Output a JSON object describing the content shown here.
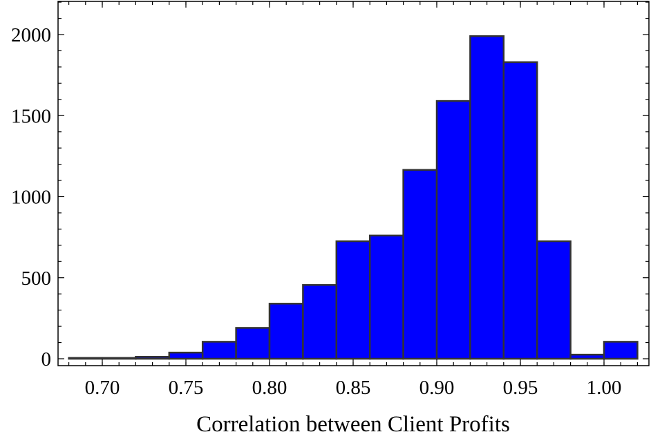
{
  "chart_data": {
    "type": "bar",
    "xlabel": "Correlation between Client Profits",
    "ylabel": "",
    "xlim": [
      0.68,
      1.025
    ],
    "ylim": [
      0,
      2200
    ],
    "bin_width": 0.02,
    "bins": [
      {
        "x0": 0.68,
        "x1": 0.7,
        "count": 5
      },
      {
        "x0": 0.7,
        "x1": 0.72,
        "count": 5
      },
      {
        "x0": 0.72,
        "x1": 0.74,
        "count": 12
      },
      {
        "x0": 0.74,
        "x1": 0.76,
        "count": 38
      },
      {
        "x0": 0.76,
        "x1": 0.78,
        "count": 105
      },
      {
        "x0": 0.78,
        "x1": 0.8,
        "count": 190
      },
      {
        "x0": 0.8,
        "x1": 0.82,
        "count": 340
      },
      {
        "x0": 0.82,
        "x1": 0.84,
        "count": 455
      },
      {
        "x0": 0.84,
        "x1": 0.86,
        "count": 725
      },
      {
        "x0": 0.86,
        "x1": 0.88,
        "count": 760
      },
      {
        "x0": 0.88,
        "x1": 0.9,
        "count": 1165
      },
      {
        "x0": 0.9,
        "x1": 0.92,
        "count": 1590
      },
      {
        "x0": 0.92,
        "x1": 0.94,
        "count": 1990
      },
      {
        "x0": 0.94,
        "x1": 0.96,
        "count": 1830
      },
      {
        "x0": 0.96,
        "x1": 0.98,
        "count": 725
      },
      {
        "x0": 0.98,
        "x1": 1.0,
        "count": 25
      },
      {
        "x0": 1.0,
        "x1": 1.02,
        "count": 105
      }
    ],
    "x_ticks": [
      {
        "value": 0.7,
        "label": "0.70"
      },
      {
        "value": 0.75,
        "label": "0.75"
      },
      {
        "value": 0.8,
        "label": "0.80"
      },
      {
        "value": 0.85,
        "label": "0.85"
      },
      {
        "value": 0.9,
        "label": "0.90"
      },
      {
        "value": 0.95,
        "label": "0.95"
      },
      {
        "value": 1.0,
        "label": "1.00"
      }
    ],
    "y_ticks": [
      {
        "value": 0,
        "label": "0"
      },
      {
        "value": 500,
        "label": "500"
      },
      {
        "value": 1000,
        "label": "1000"
      },
      {
        "value": 1500,
        "label": "1500"
      },
      {
        "value": 2000,
        "label": "2000"
      }
    ],
    "bar_color": "#0000ff",
    "edge_color": "#333333",
    "grid": false
  }
}
